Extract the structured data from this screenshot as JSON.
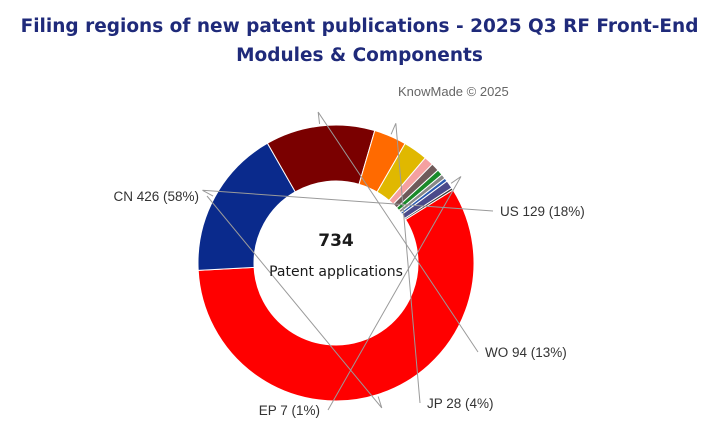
{
  "chart_data": {
    "type": "pie",
    "title_lines": [
      "Filing regions of new patent publications - 2025 Q3 RF Front-End",
      "Modules & Components"
    ],
    "credit": "KnowMade © 2025",
    "center": {
      "total": "734",
      "label": "Patent applications"
    },
    "slices": [
      {
        "name": "CN",
        "value": 426,
        "percent": "58%",
        "color": "#ff0000",
        "label": "CN 426 (58%)"
      },
      {
        "name": "US",
        "value": 129,
        "percent": "18%",
        "color": "#0a2a8c",
        "label": "US 129 (18%)"
      },
      {
        "name": "WO",
        "value": 94,
        "percent": "13%",
        "color": "#7a0000",
        "label": "WO 94 (13%)"
      },
      {
        "name": "JP",
        "value": 28,
        "percent": "4%",
        "color": "#ff6a00",
        "label": "JP 28 (4%)"
      },
      {
        "name": "",
        "value": 21,
        "color": "#e0b800",
        "label": ""
      },
      {
        "name": "",
        "value": 8,
        "color": "#f4a0a0",
        "label": ""
      },
      {
        "name": "",
        "value": 7,
        "color": "#6f5a5a",
        "label": ""
      },
      {
        "name": "",
        "value": 5,
        "color": "#1a8a2a",
        "label": ""
      },
      {
        "name": "",
        "value": 4,
        "color": "#888888",
        "label": ""
      },
      {
        "name": "",
        "value": 3,
        "color": "#2a5ab0",
        "label": ""
      },
      {
        "name": "EP",
        "value": 7,
        "percent": "1%",
        "color": "#4a4a8a",
        "label": "EP 7 (1%)"
      },
      {
        "name": "",
        "value": 2,
        "color": "#3a3a3a",
        "label": ""
      }
    ],
    "legend": "none"
  }
}
